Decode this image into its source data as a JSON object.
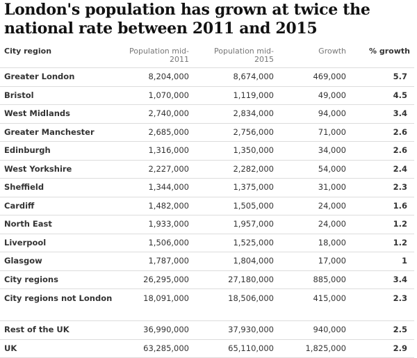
{
  "title": "London's population has grown at twice the national rate between 2011 and 2015",
  "headers": {
    "region": "City region",
    "pop2011": "Population mid-2011",
    "pop2015": "Population mid-2015",
    "growth": "Growth",
    "pct": "% growth"
  },
  "rows": [
    {
      "region": "Greater London",
      "pop2011": "8,204,000",
      "pop2015": "8,674,000",
      "growth": "469,000",
      "pct": "5.7"
    },
    {
      "region": "Bristol",
      "pop2011": "1,070,000",
      "pop2015": "1,119,000",
      "growth": "49,000",
      "pct": "4.5"
    },
    {
      "region": "West Midlands",
      "pop2011": "2,740,000",
      "pop2015": "2,834,000",
      "growth": "94,000",
      "pct": "3.4"
    },
    {
      "region": "Greater Manchester",
      "pop2011": "2,685,000",
      "pop2015": "2,756,000",
      "growth": "71,000",
      "pct": "2.6"
    },
    {
      "region": "Edinburgh",
      "pop2011": "1,316,000",
      "pop2015": "1,350,000",
      "growth": "34,000",
      "pct": "2.6"
    },
    {
      "region": "West Yorkshire",
      "pop2011": "2,227,000",
      "pop2015": "2,282,000",
      "growth": "54,000",
      "pct": "2.4"
    },
    {
      "region": "Sheffield",
      "pop2011": "1,344,000",
      "pop2015": "1,375,000",
      "growth": "31,000",
      "pct": "2.3"
    },
    {
      "region": "Cardiff",
      "pop2011": "1,482,000",
      "pop2015": "1,505,000",
      "growth": "24,000",
      "pct": "1.6"
    },
    {
      "region": "North East",
      "pop2011": "1,933,000",
      "pop2015": "1,957,000",
      "growth": "24,000",
      "pct": "1.2"
    },
    {
      "region": "Liverpool",
      "pop2011": "1,506,000",
      "pop2015": "1,525,000",
      "growth": "18,000",
      "pct": "1.2"
    },
    {
      "region": "Glasgow",
      "pop2011": "1,787,000",
      "pop2015": "1,804,000",
      "growth": "17,000",
      "pct": "1"
    },
    {
      "region": "City regions",
      "pop2011": "26,295,000",
      "pop2015": "27,180,000",
      "growth": "885,000",
      "pct": "3.4"
    },
    {
      "region": "City regions not London",
      "pop2011": "18,091,000",
      "pop2015": "18,506,000",
      "growth": "415,000",
      "pct": "2.3"
    },
    {
      "region": "Rest of the UK",
      "pop2011": "36,990,000",
      "pop2015": "37,930,000",
      "growth": "940,000",
      "pct": "2.5"
    },
    {
      "region": "UK",
      "pop2011": "63,285,000",
      "pop2015": "65,110,000",
      "growth": "1,825,000",
      "pct": "2.9"
    }
  ]
}
